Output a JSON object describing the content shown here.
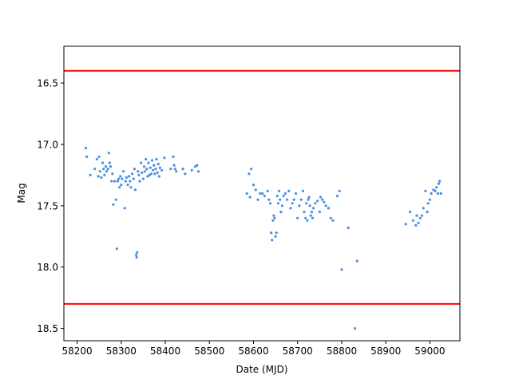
{
  "chart_data": {
    "type": "scatter",
    "title": "",
    "xlabel": "Date (MJD)",
    "ylabel": "Mag",
    "xlim": [
      58170,
      59068
    ],
    "ylim": [
      18.6,
      16.2
    ],
    "y_inverted": true,
    "grid": false,
    "x_ticks": [
      58200,
      58300,
      58400,
      58500,
      58600,
      58700,
      58800,
      58900,
      59000
    ],
    "x_tick_labels": [
      "58200",
      "58300",
      "58400",
      "58500",
      "58600",
      "58700",
      "58800",
      "58900",
      "59000"
    ],
    "y_ticks": [
      16.5,
      17.0,
      17.5,
      18.0,
      18.5
    ],
    "y_tick_labels": [
      "16.5",
      "17.0",
      "17.5",
      "18.0",
      "18.5"
    ],
    "colors": {
      "points": "#4a90e2",
      "limits": "#ff0000"
    },
    "reference_lines": [
      {
        "name": "upper-limit",
        "y": 16.4
      },
      {
        "name": "lower-limit",
        "y": 18.3
      }
    ],
    "series": [
      {
        "name": "magnitude",
        "points": [
          [
            58220,
            17.03
          ],
          [
            58222,
            17.1
          ],
          [
            58230,
            17.25
          ],
          [
            58240,
            17.2
          ],
          [
            58245,
            17.12
          ],
          [
            58248,
            17.26
          ],
          [
            58250,
            17.1
          ],
          [
            58252,
            17.22
          ],
          [
            58255,
            17.27
          ],
          [
            58258,
            17.15
          ],
          [
            58260,
            17.2
          ],
          [
            58262,
            17.25
          ],
          [
            58265,
            17.18
          ],
          [
            58267,
            17.22
          ],
          [
            58270,
            17.2
          ],
          [
            58272,
            17.07
          ],
          [
            58274,
            17.15
          ],
          [
            58276,
            17.18
          ],
          [
            58278,
            17.3
          ],
          [
            58280,
            17.24
          ],
          [
            58282,
            17.49
          ],
          [
            58285,
            17.3
          ],
          [
            58288,
            17.45
          ],
          [
            58290,
            17.85
          ],
          [
            58292,
            17.3
          ],
          [
            58294,
            17.28
          ],
          [
            58296,
            17.35
          ],
          [
            58298,
            17.26
          ],
          [
            58300,
            17.33
          ],
          [
            58302,
            17.28
          ],
          [
            58305,
            17.22
          ],
          [
            58308,
            17.52
          ],
          [
            58310,
            17.3
          ],
          [
            58312,
            17.27
          ],
          [
            58315,
            17.33
          ],
          [
            58318,
            17.26
          ],
          [
            58320,
            17.3
          ],
          [
            58322,
            17.35
          ],
          [
            58325,
            17.24
          ],
          [
            58328,
            17.28
          ],
          [
            58330,
            17.2
          ],
          [
            58332,
            17.37
          ],
          [
            58334,
            17.9
          ],
          [
            58335,
            17.92
          ],
          [
            58336,
            17.88
          ],
          [
            58338,
            17.22
          ],
          [
            58340,
            17.25
          ],
          [
            58342,
            17.3
          ],
          [
            58345,
            17.15
          ],
          [
            58347,
            17.23
          ],
          [
            58350,
            17.28
          ],
          [
            58352,
            17.18
          ],
          [
            58354,
            17.22
          ],
          [
            58356,
            17.12
          ],
          [
            58358,
            17.2
          ],
          [
            58360,
            17.26
          ],
          [
            58362,
            17.15
          ],
          [
            58364,
            17.25
          ],
          [
            58366,
            17.19
          ],
          [
            58368,
            17.24
          ],
          [
            58370,
            17.13
          ],
          [
            58372,
            17.21
          ],
          [
            58374,
            17.17
          ],
          [
            58376,
            17.24
          ],
          [
            58378,
            17.2
          ],
          [
            58380,
            17.12
          ],
          [
            58382,
            17.23
          ],
          [
            58384,
            17.16
          ],
          [
            58386,
            17.26
          ],
          [
            58388,
            17.19
          ],
          [
            58392,
            17.21
          ],
          [
            58398,
            17.11
          ],
          [
            58412,
            17.2
          ],
          [
            58418,
            17.1
          ],
          [
            58420,
            17.17
          ],
          [
            58422,
            17.2
          ],
          [
            58425,
            17.22
          ],
          [
            58440,
            17.2
          ],
          [
            58445,
            17.24
          ],
          [
            58460,
            17.21
          ],
          [
            58468,
            17.18
          ],
          [
            58472,
            17.17
          ],
          [
            58475,
            17.22
          ],
          [
            58585,
            17.4
          ],
          [
            58590,
            17.24
          ],
          [
            58592,
            17.43
          ],
          [
            58595,
            17.2
          ],
          [
            58600,
            17.33
          ],
          [
            58605,
            17.37
          ],
          [
            58610,
            17.45
          ],
          [
            58615,
            17.4
          ],
          [
            58620,
            17.4
          ],
          [
            58625,
            17.42
          ],
          [
            58632,
            17.38
          ],
          [
            58635,
            17.45
          ],
          [
            58638,
            17.48
          ],
          [
            58640,
            17.72
          ],
          [
            58642,
            17.78
          ],
          [
            58644,
            17.62
          ],
          [
            58646,
            17.58
          ],
          [
            58648,
            17.6
          ],
          [
            58650,
            17.75
          ],
          [
            58652,
            17.72
          ],
          [
            58654,
            17.42
          ],
          [
            58656,
            17.48
          ],
          [
            58658,
            17.38
          ],
          [
            58660,
            17.45
          ],
          [
            58662,
            17.55
          ],
          [
            58665,
            17.5
          ],
          [
            58668,
            17.42
          ],
          [
            58672,
            17.4
          ],
          [
            58676,
            17.45
          ],
          [
            58680,
            17.38
          ],
          [
            58684,
            17.52
          ],
          [
            58688,
            17.48
          ],
          [
            58692,
            17.45
          ],
          [
            58696,
            17.4
          ],
          [
            58700,
            17.6
          ],
          [
            58704,
            17.5
          ],
          [
            58708,
            17.45
          ],
          [
            58712,
            17.38
          ],
          [
            58715,
            17.55
          ],
          [
            58718,
            17.6
          ],
          [
            58720,
            17.48
          ],
          [
            58722,
            17.62
          ],
          [
            58724,
            17.45
          ],
          [
            58726,
            17.43
          ],
          [
            58728,
            17.5
          ],
          [
            58730,
            17.58
          ],
          [
            58732,
            17.55
          ],
          [
            58734,
            17.6
          ],
          [
            58736,
            17.52
          ],
          [
            58740,
            17.48
          ],
          [
            58745,
            17.46
          ],
          [
            58750,
            17.55
          ],
          [
            58752,
            17.43
          ],
          [
            58756,
            17.45
          ],
          [
            58760,
            17.47
          ],
          [
            58764,
            17.5
          ],
          [
            58770,
            17.52
          ],
          [
            58775,
            17.6
          ],
          [
            58780,
            17.62
          ],
          [
            58790,
            17.42
          ],
          [
            58795,
            17.38
          ],
          [
            58800,
            18.02
          ],
          [
            58815,
            17.68
          ],
          [
            58830,
            18.5
          ],
          [
            58835,
            17.95
          ],
          [
            58945,
            17.65
          ],
          [
            58955,
            17.55
          ],
          [
            58962,
            17.62
          ],
          [
            58968,
            17.66
          ],
          [
            58970,
            17.58
          ],
          [
            58974,
            17.64
          ],
          [
            58978,
            17.6
          ],
          [
            58982,
            17.58
          ],
          [
            58985,
            17.52
          ],
          [
            58990,
            17.38
          ],
          [
            58994,
            17.55
          ],
          [
            58996,
            17.48
          ],
          [
            59000,
            17.45
          ],
          [
            59003,
            17.4
          ],
          [
            59008,
            17.37
          ],
          [
            59012,
            17.38
          ],
          [
            59015,
            17.35
          ],
          [
            59018,
            17.4
          ],
          [
            59020,
            17.32
          ],
          [
            59022,
            17.3
          ],
          [
            59025,
            17.4
          ]
        ]
      }
    ]
  }
}
